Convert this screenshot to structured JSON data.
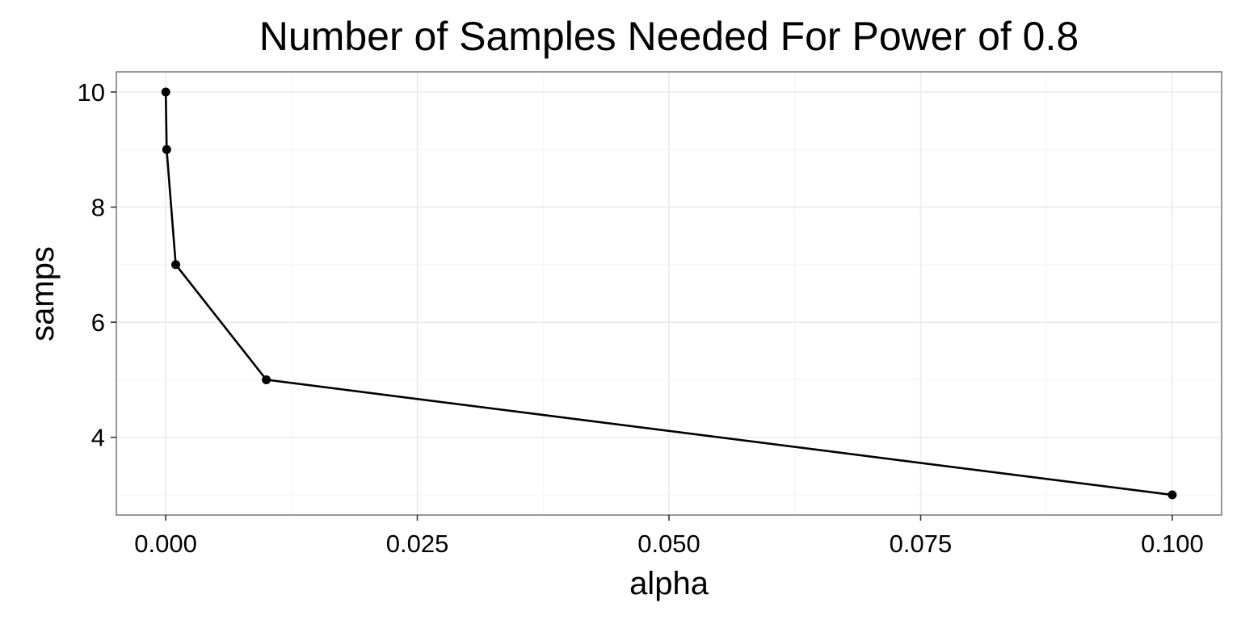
{
  "chart_data": {
    "type": "line",
    "title": "Number of Samples Needed For Power of 0.8",
    "xlabel": "alpha",
    "ylabel": "samps",
    "xlim": [
      -0.0049,
      0.1049
    ],
    "ylim": [
      2.65,
      10.35
    ],
    "x_ticks": [
      0.0,
      0.025,
      0.05,
      0.075,
      0.1
    ],
    "x_tick_labels": [
      "0.000",
      "0.025",
      "0.050",
      "0.075",
      "0.100"
    ],
    "y_ticks": [
      4,
      6,
      8,
      10
    ],
    "y_tick_labels": [
      "4",
      "6",
      "8",
      "10"
    ],
    "grid": true,
    "series": [
      {
        "x": [
          1e-05,
          0.0001,
          0.001,
          0.01,
          0.1
        ],
        "y": [
          10,
          9,
          7,
          5,
          3
        ],
        "color": "#000000",
        "markers": true
      }
    ]
  }
}
